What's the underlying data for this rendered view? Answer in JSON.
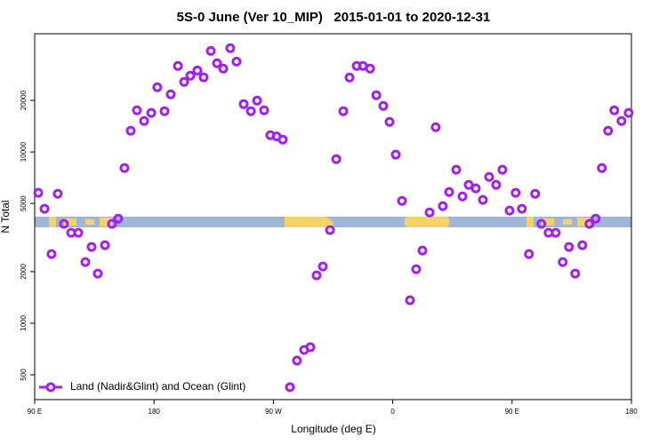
{
  "chart_data": {
    "type": "scatter",
    "title": "5S-0 June (Ver 10_MIP)   2015-01-01 to 2020-12-31",
    "x_label": "Longitude (deg E)",
    "y_label": "N Total",
    "xlim": [
      90,
      540
    ],
    "xticks": [
      {
        "value": 90,
        "label": "90 E"
      },
      180,
      {
        "value": 270,
        "label": "90 W"
      },
      {
        "value": 360,
        "label": "0"
      },
      {
        "value": 450,
        "label": "90 E"
      },
      {
        "value": 540,
        "label": "180"
      }
    ],
    "ylim": [
      358,
      49000
    ],
    "yticks": [
      500,
      1000,
      2000,
      5000,
      10000,
      20000
    ],
    "log_y": true,
    "grid": false,
    "legend": "bottom-left",
    "series": [
      {
        "name": "Land (Nadir&Glint) and Ocean (Glint)",
        "color": "#a020f0",
        "x": [
          92.7,
          97.4,
          102.7,
          107.4,
          112.1,
          117.5,
          122.9,
          128.2,
          132.9,
          137.6,
          143.0,
          148.3,
          153.0,
          157.7,
          162.4,
          167.1,
          172.5,
          177.9,
          182.5,
          187.9,
          192.6,
          198.0,
          202.7,
          207.4,
          212.7,
          217.4,
          222.8,
          227.5,
          232.2,
          237.5,
          242.2,
          247.6,
          253.0,
          257.7,
          263.0,
          267.7,
          272.4,
          277.1,
          282.5,
          287.8,
          293.2,
          297.9,
          302.6,
          307.3,
          312.7,
          317.4,
          322.7,
          327.4,
          332.8,
          337.5,
          342.9,
          347.6,
          352.9,
          357.6,
          362.3,
          367.0,
          373.0,
          377.7,
          382.4,
          387.8,
          392.4,
          397.8,
          402.5,
          407.9,
          412.6,
          417.3,
          422.6,
          428.0,
          432.7,
          438.0,
          442.7,
          448.1,
          452.7,
          457.4,
          462.7,
          467.4,
          472.1,
          477.5,
          482.9,
          488.2,
          492.9,
          497.6,
          503.0,
          508.3,
          513.0,
          517.7,
          522.4,
          527.1,
          532.5,
          537.9
        ],
        "values": [
          5770,
          4655,
          2533,
          5700,
          3800,
          3373,
          3373,
          2275,
          2786,
          1949,
          2853,
          3800,
          4080,
          8056,
          13300,
          17500,
          15170,
          16900,
          23870,
          17300,
          21700,
          31770,
          25630,
          27870,
          29920,
          27250,
          38900,
          32930,
          30650,
          40350,
          33700,
          19010,
          17300,
          19940,
          17500,
          12530,
          12330,
          11800,
          423,
          605,
          698,
          724,
          1902,
          2143,
          3497,
          9080,
          17300,
          27200,
          31770,
          31770,
          30650,
          21450,
          18580,
          14990,
          9640,
          5180,
          1362,
          2068,
          2657,
          4436,
          13950,
          4827,
          5836,
          7870,
          5496,
          6424,
          6125,
          5245,
          7150,
          6424,
          7870,
          4544,
          5770,
          4655,
          2533,
          5700,
          3800,
          3373,
          3373,
          2275,
          2786,
          1949,
          2853,
          3800,
          4080,
          8056,
          13300,
          17500,
          15170,
          16900
        ]
      }
    ]
  }
}
